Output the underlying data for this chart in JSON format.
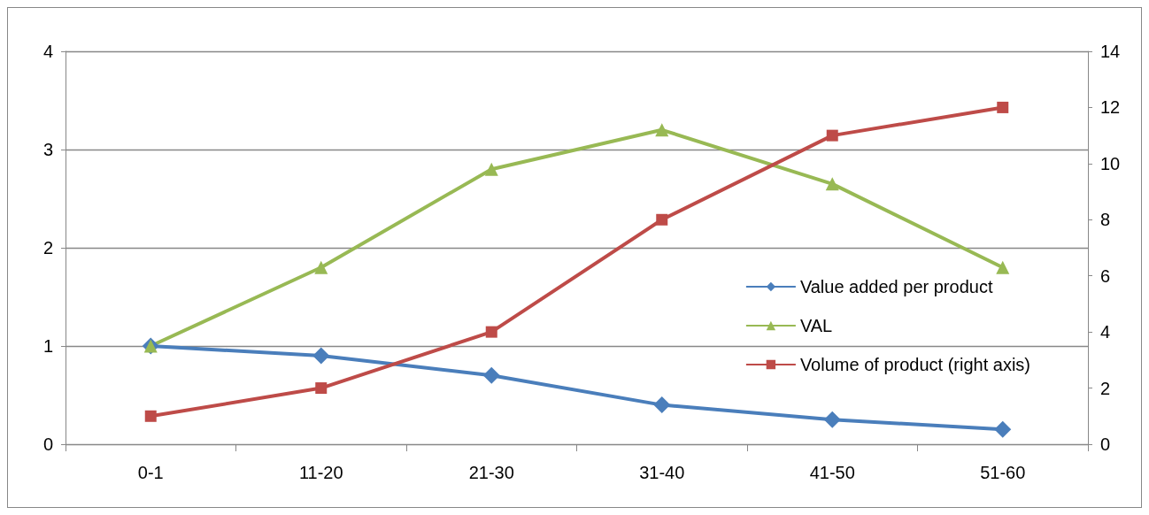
{
  "chart_data": {
    "type": "line",
    "categories": [
      "0-1",
      "11-20",
      "21-30",
      "31-40",
      "41-50",
      "51-60"
    ],
    "series": [
      {
        "name": "Value added per product",
        "color": "#4a7ebb",
        "marker": "diamond",
        "values": [
          1,
          0.9,
          0.7,
          0.4,
          0.25,
          0.15
        ]
      },
      {
        "name": "VAL",
        "color": "#98b954",
        "marker": "triangle",
        "values": [
          1,
          1.8,
          2.8,
          3.2,
          2.65,
          1.8
        ]
      },
      {
        "name": "Volume of product (right axis)",
        "color": "#be4b48",
        "marker": "square",
        "axis": "y2",
        "values": [
          1,
          2,
          4,
          8,
          11,
          12
        ]
      }
    ],
    "ylim": [
      0,
      4
    ],
    "yticks": [
      0,
      1,
      2,
      3,
      4
    ],
    "y2lim": [
      0,
      14
    ],
    "y2ticks": [
      0,
      2,
      4,
      6,
      8,
      10,
      12,
      14
    ],
    "grid": "y",
    "legend": "right",
    "line_style": "solid"
  }
}
